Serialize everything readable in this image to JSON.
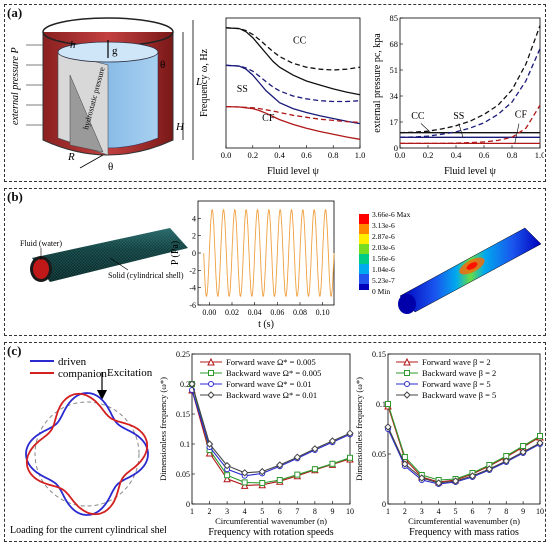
{
  "panels": {
    "a": {
      "label": "(a)"
    },
    "b": {
      "label": "(b)"
    },
    "c": {
      "label": "(c)"
    }
  },
  "a_illustration": {
    "external_pressure": "external pressure P",
    "hydrostatic": "hydrostatic pressure",
    "h": "h",
    "g": "g",
    "theta": "θ",
    "R": "R",
    "H": "H",
    "L": "L",
    "theta2": "θ"
  },
  "b_illustration": {
    "fluid_label": "Fluid (water)",
    "solid_label": "Solid (cylindrical shell)",
    "colorbar_ticks": [
      "3.66e-6 Max",
      "3.13e-6",
      "2.87e-6",
      "2.03e-6",
      "1.56e-6",
      "1.04e-6",
      "5.23e-7",
      "0 Min"
    ],
    "colorbar_colors": [
      "#ff0000",
      "#ff8800",
      "#ffee00",
      "#77dd22",
      "#00cc88",
      "#00aaee",
      "#2255ee",
      "#0000bb"
    ]
  },
  "c_illustration": {
    "driven": "driven",
    "companion": "companion",
    "excitation": "Excitation",
    "caption": "Loading for the current cylindrical shell",
    "driven_color": "#2a2ad0",
    "companion_color": "#d42020"
  },
  "chart_data": [
    {
      "id": "a_freq",
      "type": "line",
      "xlabel": "Fluid level ψ",
      "ylabel": "Frequency ω, Hz",
      "xlim": [
        0.0,
        1.0
      ],
      "xticks": [
        "0.0",
        "0.2",
        "0.4",
        "0.6",
        "0.8",
        "1.0"
      ],
      "annotations": [
        "CC",
        "SS",
        "CF"
      ],
      "x": [
        0.0,
        0.1,
        0.15,
        0.2,
        0.25,
        0.3,
        0.35,
        0.4,
        0.5,
        0.6,
        0.7,
        0.8,
        0.9,
        1.0
      ],
      "series": [
        {
          "group": "CC",
          "style": "solid",
          "color": "#111111",
          "values": [
            3.35,
            3.33,
            3.25,
            3.1,
            2.9,
            2.7,
            2.5,
            2.35,
            2.15,
            2.0,
            1.9,
            1.8,
            1.72,
            1.65
          ]
        },
        {
          "group": "CC",
          "style": "dashed",
          "color": "#111111",
          "values": [
            3.35,
            3.33,
            3.28,
            3.18,
            3.05,
            2.9,
            2.75,
            2.62,
            2.45,
            2.35,
            2.3,
            2.28,
            2.3,
            2.35
          ]
        },
        {
          "group": "SS",
          "style": "solid",
          "color": "#1a1a7a",
          "values": [
            2.4,
            2.38,
            2.3,
            2.15,
            1.95,
            1.75,
            1.6,
            1.45,
            1.3,
            1.2,
            1.12,
            1.05,
            0.98,
            0.92
          ]
        },
        {
          "group": "SS",
          "style": "dashed",
          "color": "#1a1a7a",
          "values": [
            2.4,
            2.38,
            2.33,
            2.25,
            2.12,
            1.98,
            1.85,
            1.75,
            1.62,
            1.55,
            1.5,
            1.48,
            1.48,
            1.5
          ]
        },
        {
          "group": "CF",
          "style": "solid",
          "color": "#b01818",
          "values": [
            1.35,
            1.34,
            1.32,
            1.3,
            1.25,
            1.18,
            1.1,
            1.02,
            0.9,
            0.8,
            0.72,
            0.65,
            0.58,
            0.52
          ]
        },
        {
          "group": "CF",
          "style": "dashed",
          "color": "#b01818",
          "values": [
            1.35,
            1.34,
            1.33,
            1.32,
            1.3,
            1.27,
            1.24,
            1.2,
            1.13,
            1.08,
            1.03,
            1.0,
            0.97,
            0.95
          ]
        }
      ],
      "ylim": [
        0.3,
        3.6
      ]
    },
    {
      "id": "a_pressure",
      "type": "line",
      "xlabel": "Fluid level ψ",
      "ylabel": "external pressure pc, kpa",
      "xlim": [
        0.0,
        1.0
      ],
      "ylim": [
        0,
        85
      ],
      "xticks": [
        "0.0",
        "0.2",
        "0.4",
        "0.6",
        "0.8",
        "1.0"
      ],
      "yticks": [
        "0",
        "17",
        "34",
        "51",
        "68",
        "85"
      ],
      "annotations": [
        "CC",
        "SS",
        "CF"
      ],
      "x": [
        0.0,
        0.1,
        0.2,
        0.3,
        0.4,
        0.5,
        0.6,
        0.7,
        0.8,
        0.9,
        1.0
      ],
      "series": [
        {
          "group": "CC",
          "style": "solid",
          "color": "#111111",
          "values": [
            10,
            10,
            10,
            10,
            10,
            10,
            10,
            10,
            10,
            10,
            10
          ]
        },
        {
          "group": "CC",
          "style": "dashed",
          "color": "#111111",
          "values": [
            10,
            10.3,
            11,
            12.5,
            14.5,
            17.5,
            22,
            28,
            38,
            55,
            80
          ]
        },
        {
          "group": "SS",
          "style": "solid",
          "color": "#1a1a7a",
          "values": [
            7,
            7,
            7,
            7,
            7,
            7,
            7,
            7,
            7,
            7,
            7
          ]
        },
        {
          "group": "SS",
          "style": "dashed",
          "color": "#1a1a7a",
          "values": [
            7,
            7.2,
            7.8,
            9,
            10.5,
            13,
            16.5,
            22,
            30,
            44,
            65
          ]
        },
        {
          "group": "CF",
          "style": "solid",
          "color": "#b01818",
          "values": [
            3,
            3,
            3,
            3,
            3,
            3,
            3,
            3,
            3,
            3,
            3
          ]
        },
        {
          "group": "CF",
          "style": "dashed",
          "color": "#b01818",
          "values": [
            3,
            3,
            3,
            3,
            3.2,
            3.5,
            4,
            5,
            7,
            13,
            28
          ]
        }
      ]
    },
    {
      "id": "b_time",
      "type": "line",
      "xlabel": "t (s)",
      "ylabel": "P (Pa)",
      "xlim": [
        -0.01,
        0.11
      ],
      "ylim": [
        -6,
        6
      ],
      "xticks": [
        "0.00",
        "0.02",
        "0.04",
        "0.06",
        "0.08",
        "0.10"
      ],
      "yticks": [
        "-6",
        "-4",
        "-2",
        "0",
        "2",
        "4"
      ],
      "series": [
        {
          "name": "",
          "amplitude": 5,
          "frequency_hz": 100,
          "color": "#f0a040",
          "t_start": -0.005,
          "t_end": 0.11
        }
      ]
    },
    {
      "id": "c_rotation",
      "type": "line",
      "title": "Frequency with rotation speeds",
      "xlabel": "Circumferential wavenumber (n)",
      "ylabel": "Dimensionless frequency (ω*)",
      "xlim": [
        1,
        10
      ],
      "ylim": [
        0,
        0.25
      ],
      "xticks": [
        "1",
        "2",
        "3",
        "4",
        "5",
        "6",
        "7",
        "8",
        "9",
        "10"
      ],
      "yticks": [
        "0",
        "0.05",
        "0.1",
        "0.15",
        "0.2",
        "0.25"
      ],
      "x": [
        1,
        2,
        3,
        4,
        5,
        6,
        7,
        8,
        9,
        10
      ],
      "series": [
        {
          "name": "Forward wave  Ω* = 0.005",
          "color": "#b01818",
          "marker": "triangle",
          "values": [
            0.19,
            0.085,
            0.042,
            0.031,
            0.032,
            0.038,
            0.047,
            0.057,
            0.066,
            0.075
          ]
        },
        {
          "name": "Backward wave Ω* = 0.005",
          "color": "#2e9a2e",
          "marker": "square",
          "values": [
            0.2,
            0.09,
            0.048,
            0.036,
            0.035,
            0.04,
            0.049,
            0.058,
            0.067,
            0.077
          ]
        },
        {
          "name": "Forward wave  Ω* = 0.01",
          "color": "#2a2ad0",
          "marker": "circle",
          "values": [
            0.19,
            0.095,
            0.058,
            0.047,
            0.051,
            0.063,
            0.076,
            0.09,
            0.103,
            0.116
          ]
        },
        {
          "name": "Backward wave Ω* = 0.01",
          "color": "#444444",
          "marker": "diamond",
          "values": [
            0.2,
            0.1,
            0.064,
            0.052,
            0.054,
            0.065,
            0.078,
            0.092,
            0.105,
            0.118
          ]
        }
      ]
    },
    {
      "id": "c_mass",
      "type": "line",
      "title": "Frequency with mass ratios",
      "xlabel": "Circumferential wavenumber (n)",
      "ylabel": "Dimensionless frequency (ω*)",
      "xlim": [
        1,
        10
      ],
      "ylim": [
        0,
        0.15
      ],
      "xticks": [
        "1",
        "2",
        "3",
        "4",
        "5",
        "6",
        "7",
        "8",
        "9",
        "10"
      ],
      "yticks": [
        "0",
        "0.05",
        "0.1",
        "0.15"
      ],
      "x": [
        1,
        2,
        3,
        4,
        5,
        6,
        7,
        8,
        9,
        10
      ],
      "series": [
        {
          "name": "Forward wave   β = 2",
          "color": "#b01818",
          "marker": "triangle",
          "values": [
            0.098,
            0.045,
            0.027,
            0.022,
            0.024,
            0.03,
            0.038,
            0.047,
            0.057,
            0.067
          ]
        },
        {
          "name": "Backward wave β = 2",
          "color": "#2e9a2e",
          "marker": "square",
          "values": [
            0.1,
            0.047,
            0.029,
            0.024,
            0.025,
            0.031,
            0.039,
            0.048,
            0.058,
            0.068
          ]
        },
        {
          "name": "Forward wave   β = 5",
          "color": "#2a2ad0",
          "marker": "circle",
          "values": [
            0.075,
            0.038,
            0.024,
            0.02,
            0.022,
            0.027,
            0.034,
            0.042,
            0.051,
            0.06
          ]
        },
        {
          "name": "Backward wave β = 5",
          "color": "#444444",
          "marker": "diamond",
          "values": [
            0.077,
            0.04,
            0.026,
            0.021,
            0.023,
            0.028,
            0.035,
            0.043,
            0.052,
            0.061
          ]
        }
      ]
    }
  ]
}
